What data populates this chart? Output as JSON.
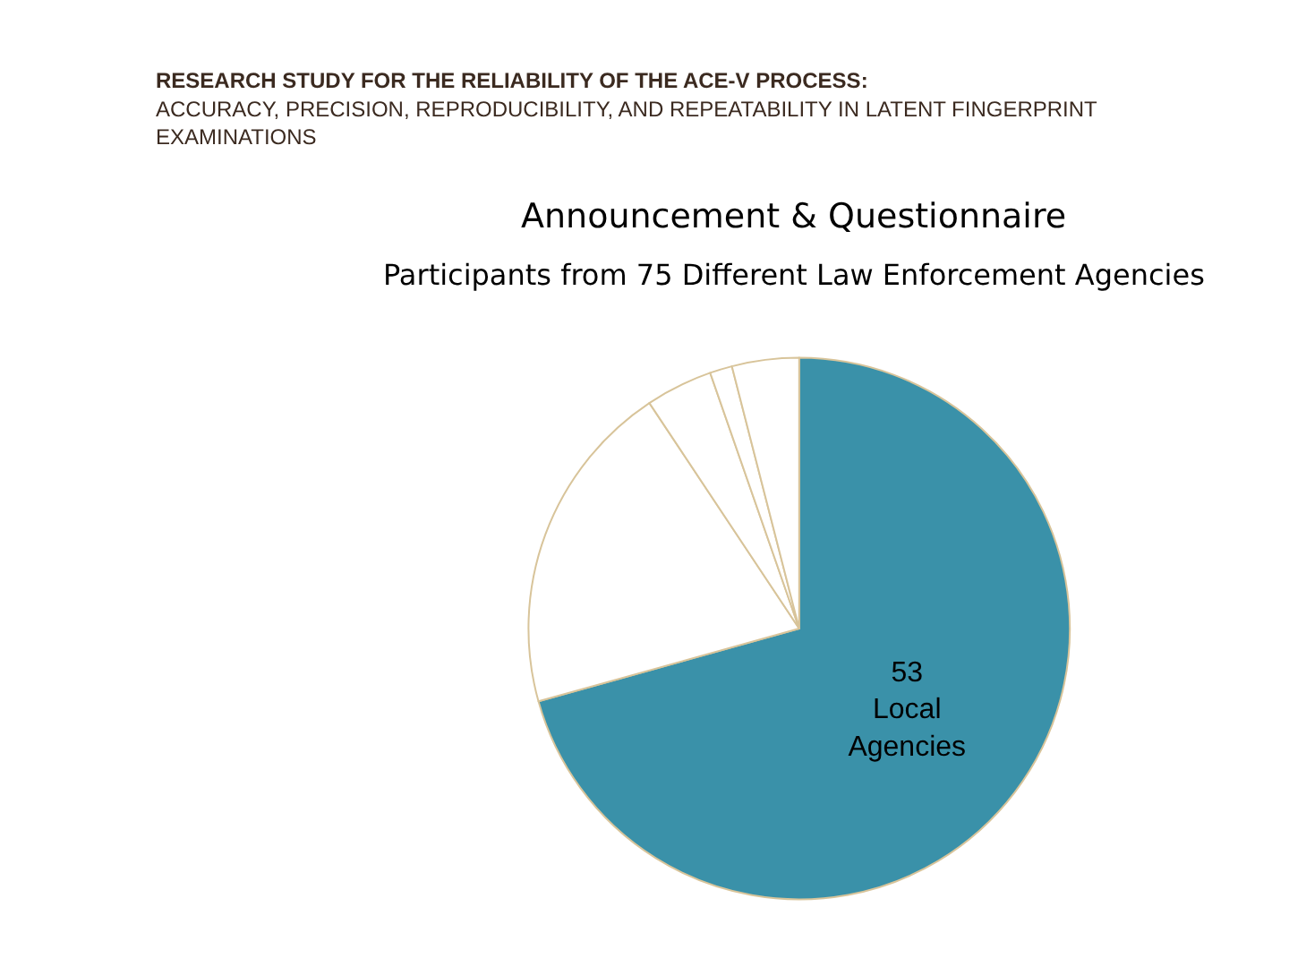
{
  "chart_data": {
    "type": "pie",
    "title": "Announcement & Questionnaire",
    "subtitle": "Participants from 75 Different Law Enforcement Agencies",
    "annotations": [
      "RESEARCH STUDY FOR THE RELIABILITY OF THE ACE-V PROCESS:",
      "ACCURACY, PRECISION, REPRODUCIBILITY, AND REPEATABILITY IN LATENT FINGERPRINT EXAMINATIONS"
    ],
    "categories": [
      "Local Agencies",
      null,
      null,
      null,
      null
    ],
    "values": [
      53,
      15,
      3,
      1,
      3
    ],
    "colors": [
      "#3a91a9",
      "#ffffff",
      "#ffffff",
      "#ffffff",
      "#ffffff"
    ],
    "value_labels": [
      "53",
      null,
      null,
      null,
      null
    ],
    "legend": false
  }
}
